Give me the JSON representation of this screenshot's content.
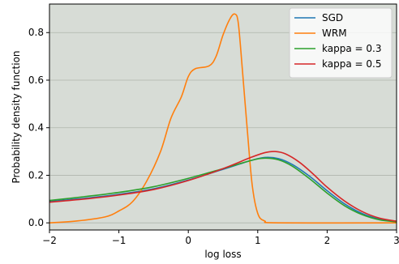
{
  "chart_data": {
    "type": "line",
    "xlabel": "log loss",
    "ylabel": "Probability density function",
    "xlim": [
      -2,
      3
    ],
    "ylim": [
      -0.03,
      0.92
    ],
    "x_ticks": [
      -2,
      -1,
      0,
      1,
      2,
      3
    ],
    "x_tick_labels": [
      "−2",
      "−1",
      "0",
      "1",
      "2",
      "3"
    ],
    "y_ticks": [
      0.0,
      0.2,
      0.4,
      0.6,
      0.8
    ],
    "y_tick_labels": [
      "0.0",
      "0.2",
      "0.4",
      "0.6",
      "0.8"
    ],
    "grid": "horizontal",
    "background_color": "#d7dcd6",
    "legend_position": "top-right",
    "series": [
      {
        "name": "SGD",
        "color": "#1f77b4",
        "points": [
          [
            -2,
            0.09
          ],
          [
            -1.5,
            0.103
          ],
          [
            -1,
            0.12
          ],
          [
            -0.5,
            0.143
          ],
          [
            0,
            0.18
          ],
          [
            0.5,
            0.225
          ],
          [
            0.9,
            0.262
          ],
          [
            1.1,
            0.275
          ],
          [
            1.3,
            0.27
          ],
          [
            1.5,
            0.245
          ],
          [
            1.75,
            0.195
          ],
          [
            2,
            0.135
          ],
          [
            2.25,
            0.08
          ],
          [
            2.5,
            0.04
          ],
          [
            2.75,
            0.016
          ],
          [
            3,
            0.006
          ]
        ]
      },
      {
        "name": "WRM",
        "color": "#ff7f0e",
        "points": [
          [
            -2,
            0
          ],
          [
            -1.6,
            0.008
          ],
          [
            -1.2,
            0.025
          ],
          [
            -1,
            0.05
          ],
          [
            -0.8,
            0.09
          ],
          [
            -0.6,
            0.175
          ],
          [
            -0.4,
            0.3
          ],
          [
            -0.25,
            0.44
          ],
          [
            -0.1,
            0.53
          ],
          [
            0,
            0.615
          ],
          [
            0.1,
            0.648
          ],
          [
            0.3,
            0.66
          ],
          [
            0.4,
            0.7
          ],
          [
            0.5,
            0.79
          ],
          [
            0.6,
            0.858
          ],
          [
            0.67,
            0.878
          ],
          [
            0.72,
            0.84
          ],
          [
            0.78,
            0.64
          ],
          [
            0.85,
            0.39
          ],
          [
            0.92,
            0.16
          ],
          [
            1,
            0.04
          ],
          [
            1.1,
            0.008
          ],
          [
            1.3,
            0
          ],
          [
            3,
            0
          ]
        ]
      },
      {
        "name": "kappa = 0.3",
        "color": "#2ca02c",
        "points": [
          [
            -2,
            0.094
          ],
          [
            -1.5,
            0.11
          ],
          [
            -1,
            0.128
          ],
          [
            -0.5,
            0.152
          ],
          [
            0,
            0.187
          ],
          [
            0.5,
            0.228
          ],
          [
            0.9,
            0.262
          ],
          [
            1.1,
            0.272
          ],
          [
            1.3,
            0.265
          ],
          [
            1.5,
            0.238
          ],
          [
            1.75,
            0.185
          ],
          [
            2,
            0.125
          ],
          [
            2.25,
            0.072
          ],
          [
            2.5,
            0.035
          ],
          [
            2.75,
            0.013
          ],
          [
            3,
            0.004
          ]
        ]
      },
      {
        "name": "kappa = 0.5",
        "color": "#d62728",
        "points": [
          [
            -2,
            0.087
          ],
          [
            -1.5,
            0.1
          ],
          [
            -1,
            0.117
          ],
          [
            -0.5,
            0.14
          ],
          [
            0,
            0.178
          ],
          [
            0.5,
            0.228
          ],
          [
            0.9,
            0.275
          ],
          [
            1.1,
            0.295
          ],
          [
            1.25,
            0.3
          ],
          [
            1.4,
            0.29
          ],
          [
            1.6,
            0.255
          ],
          [
            1.8,
            0.205
          ],
          [
            2,
            0.15
          ],
          [
            2.25,
            0.092
          ],
          [
            2.5,
            0.048
          ],
          [
            2.75,
            0.02
          ],
          [
            3,
            0.007
          ]
        ]
      }
    ]
  }
}
